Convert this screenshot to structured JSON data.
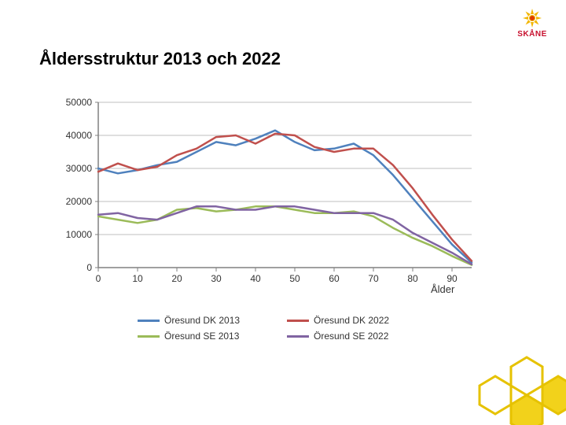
{
  "title": "Åldersstruktur 2013 och 2022",
  "logo": {
    "text": "SKÅNE",
    "accent_color": "#c8102e",
    "sun_outer": "#f2b600",
    "sun_inner": "#e03c00"
  },
  "chart": {
    "type": "line",
    "xlabel": "Ålder",
    "x": [
      0,
      5,
      10,
      15,
      20,
      25,
      30,
      35,
      40,
      45,
      50,
      55,
      60,
      65,
      70,
      75,
      80,
      85,
      90,
      95
    ],
    "xlim": [
      0,
      95
    ],
    "xtick_step": 10,
    "ylim": [
      0,
      50000
    ],
    "ytick_step": 10000,
    "grid_color": "#bfbfbf",
    "axis_color": "#808080",
    "background_color": "#ffffff",
    "label_fontsize": 12,
    "line_width": 2.5,
    "series": [
      {
        "name": "Öresund DK 2013",
        "color": "#4f81bd",
        "y": [
          30000,
          28500,
          29500,
          31000,
          32000,
          35000,
          38000,
          37000,
          39000,
          41500,
          38000,
          35500,
          36000,
          37500,
          34000,
          28000,
          21000,
          14000,
          7000,
          1500
        ]
      },
      {
        "name": "Öresund DK 2022",
        "color": "#c0504d",
        "y": [
          29000,
          31500,
          29500,
          30500,
          34000,
          36000,
          39500,
          40000,
          37500,
          40500,
          40000,
          36500,
          35000,
          36000,
          36000,
          31000,
          24000,
          16000,
          8500,
          2000
        ]
      },
      {
        "name": "Öresund SE 2013",
        "color": "#9bbb59",
        "y": [
          15500,
          14500,
          13500,
          14500,
          17500,
          18000,
          17000,
          17500,
          18500,
          18500,
          17500,
          16500,
          16500,
          17000,
          15500,
          12000,
          9000,
          6500,
          3500,
          800
        ]
      },
      {
        "name": "Öresund SE 2022",
        "color": "#8064a2",
        "y": [
          16000,
          16500,
          15000,
          14500,
          16500,
          18500,
          18500,
          17500,
          17500,
          18500,
          18500,
          17500,
          16500,
          16500,
          16500,
          14500,
          10500,
          7500,
          4500,
          1000
        ]
      }
    ]
  },
  "legend": {
    "items": [
      {
        "label": "Öresund DK 2013",
        "color": "#4f81bd"
      },
      {
        "label": "Öresund DK 2022",
        "color": "#c0504d"
      },
      {
        "label": "Öresund SE 2013",
        "color": "#9bbb59"
      },
      {
        "label": "Öresund SE 2022",
        "color": "#8064a2"
      }
    ]
  },
  "honeycomb": {
    "stroke": "#e6c200",
    "fill_a": "#f2d21b",
    "fill_b": "#ffffff"
  }
}
